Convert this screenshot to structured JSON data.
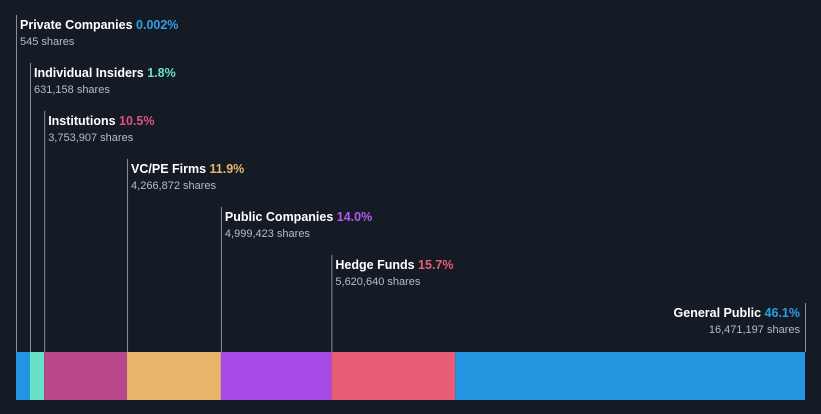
{
  "chart_data": {
    "type": "bar",
    "orientation": "stacked-horizontal",
    "title": "",
    "categories": [
      "Private Companies",
      "Individual Insiders",
      "Institutions",
      "VC/PE Firms",
      "Public Companies",
      "Hedge Funds",
      "General Public"
    ],
    "values": [
      0.002,
      1.8,
      10.5,
      11.9,
      14.0,
      15.7,
      46.1
    ],
    "value_labels": [
      "0.002%",
      "1.8%",
      "10.5%",
      "11.9%",
      "14.0%",
      "15.7%",
      "46.1%"
    ],
    "shares": [
      "545 shares",
      "631,158 shares",
      "3,753,907 shares",
      "4,266,872 shares",
      "4,999,423 shares",
      "5,620,640 shares",
      "16,471,197 shares"
    ],
    "colors": [
      "#2394df",
      "#6be0c8",
      "#b8488a",
      "#e8b56a",
      "#a64be8",
      "#e85d76",
      "#2394df"
    ],
    "bar_colors": [
      "#2394df",
      "#6be0c8",
      "#b8488a",
      "#e8b56a",
      "#a64be8",
      "#e85d76",
      "#2394df"
    ],
    "pct_colors": [
      "#2d9ee8",
      "#6be0c8",
      "#e0507f",
      "#e8b56a",
      "#b15cf0",
      "#e85d76",
      "#2d9ee8"
    ],
    "xlim": [
      0,
      100
    ],
    "unit": "%"
  }
}
